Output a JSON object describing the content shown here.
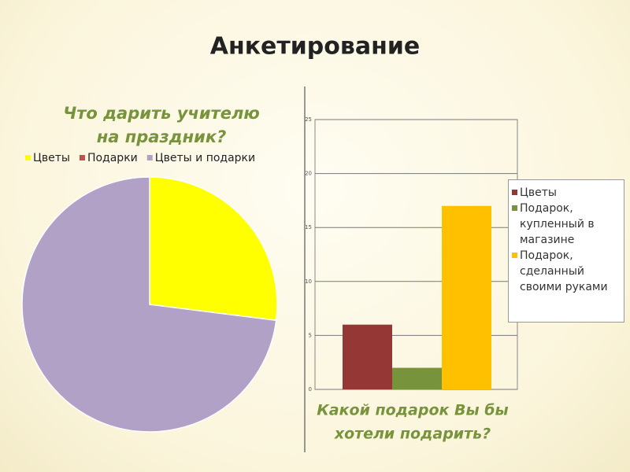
{
  "title": "Анкетирование",
  "chart_data": [
    {
      "type": "pie",
      "title": [
        "Что дарить учителю",
        "на праздник?"
      ],
      "categories": [
        "Цветы",
        "Подарки",
        "Цветы и подарки"
      ],
      "values": [
        27,
        0,
        73
      ],
      "colors": [
        "#ffff00",
        "#c0504d",
        "#b2a1c7"
      ],
      "legend": "top"
    },
    {
      "type": "bar",
      "title": [
        "Какой подарок Вы бы",
        "хотели подарить?"
      ],
      "series": [
        {
          "name": "Цветы",
          "color": "#953735",
          "values": [
            6
          ]
        },
        {
          "name": "Подарок, купленный в магазине",
          "color": "#77933c",
          "values": [
            2
          ]
        },
        {
          "name": "Подарок, сделанный своими руками",
          "color": "#ffc000",
          "values": [
            17
          ]
        }
      ],
      "ylim": [
        0,
        25
      ],
      "yticks": [
        0,
        5,
        10,
        15,
        20,
        25
      ],
      "grid": true,
      "legend": "right"
    }
  ]
}
